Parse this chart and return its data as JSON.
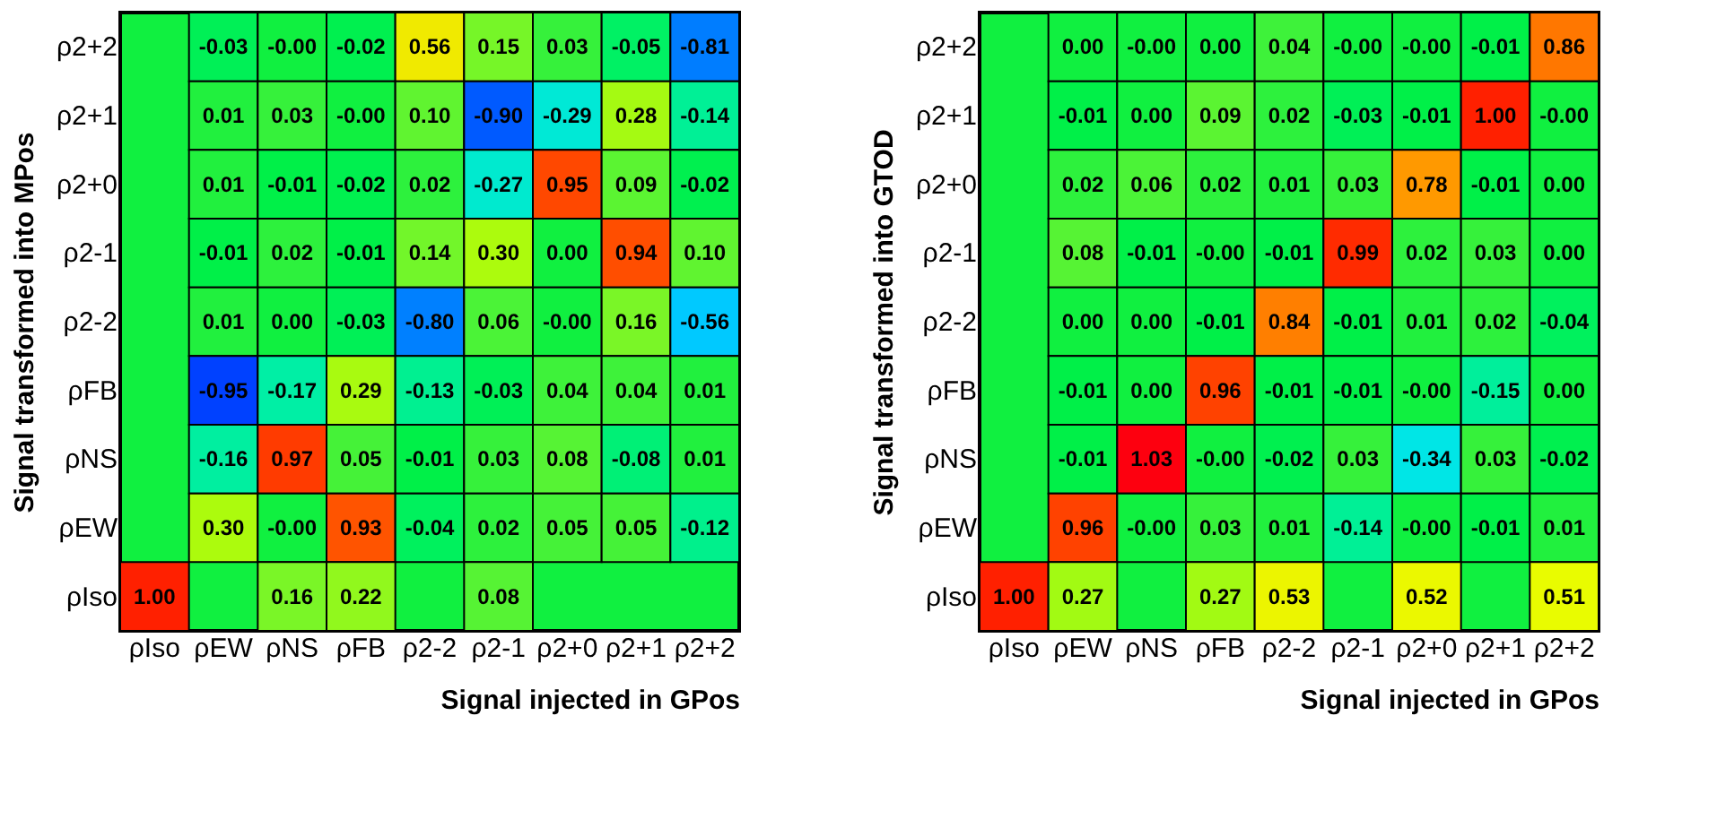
{
  "chart_data": [
    {
      "type": "heatmap",
      "xlabel": "Signal injected in GPos",
      "ylabel": "Signal transformed into MPos",
      "categories": [
        "ρIso",
        "ρEW",
        "ρNS",
        "ρFB",
        "ρ2-2",
        "ρ2-1",
        "ρ2+0",
        "ρ2+1",
        "ρ2+2"
      ],
      "y_categories": [
        "ρ2+2",
        "ρ2+1",
        "ρ2+0",
        "ρ2-1",
        "ρ2-2",
        "ρFB",
        "ρNS",
        "ρEW",
        "ρIso"
      ],
      "cells": [
        [
          null,
          -0.03,
          0,
          -0.02,
          0.56,
          0.15,
          0.03,
          -0.05,
          -0.81
        ],
        [
          null,
          0.01,
          0.03,
          0,
          0.1,
          -0.9,
          -0.29,
          0.28,
          -0.14
        ],
        [
          null,
          0.01,
          -0.01,
          -0.02,
          0.02,
          -0.27,
          0.95,
          0.09,
          -0.02
        ],
        [
          null,
          -0.01,
          0.02,
          -0.01,
          0.14,
          0.3,
          0,
          0.94,
          0.1
        ],
        [
          null,
          0.01,
          0,
          -0.03,
          -0.8,
          0.06,
          0,
          0.16,
          -0.56
        ],
        [
          null,
          -0.95,
          -0.17,
          0.29,
          -0.13,
          -0.03,
          0.04,
          0.04,
          0.01
        ],
        [
          null,
          -0.16,
          0.97,
          0.05,
          -0.01,
          0.03,
          0.08,
          -0.08,
          0.01
        ],
        [
          null,
          0.3,
          0,
          0.93,
          -0.04,
          0.02,
          0.05,
          0.05,
          -0.12
        ],
        [
          1,
          null,
          0.16,
          0.22,
          null,
          0.08,
          null,
          null,
          null
        ]
      ],
      "data_labels": true,
      "cell_labels": [
        [
          null,
          "-0.03",
          "-0.00",
          "-0.02",
          "0.56",
          "0.15",
          "0.03",
          "-0.05",
          "-0.81"
        ],
        [
          null,
          "0.01",
          "0.03",
          "-0.00",
          "0.10",
          "-0.90",
          "-0.29",
          "0.28",
          "-0.14"
        ],
        [
          null,
          "0.01",
          "-0.01",
          "-0.02",
          "0.02",
          "-0.27",
          "0.95",
          "0.09",
          "-0.02"
        ],
        [
          null,
          "-0.01",
          "0.02",
          "-0.01",
          "0.14",
          "0.30",
          "0.00",
          "0.94",
          "0.10"
        ],
        [
          null,
          "0.01",
          "0.00",
          "-0.03",
          "-0.80",
          "0.06",
          "-0.00",
          "0.16",
          "-0.56"
        ],
        [
          null,
          "-0.95",
          "-0.17",
          "0.29",
          "-0.13",
          "-0.03",
          "0.04",
          "0.04",
          "0.01"
        ],
        [
          null,
          "-0.16",
          "0.97",
          "0.05",
          "-0.01",
          "0.03",
          "0.08",
          "-0.08",
          "0.01"
        ],
        [
          null,
          "0.30",
          "-0.00",
          "0.93",
          "-0.04",
          "0.02",
          "0.05",
          "0.05",
          "-0.12"
        ],
        [
          "1.00",
          null,
          "0.16",
          "0.22",
          null,
          "0.08",
          null,
          null,
          null
        ]
      ]
    },
    {
      "type": "heatmap",
      "xlabel": "Signal injected in GPos",
      "ylabel": "Signal transformed into GTOD",
      "categories": [
        "ρIso",
        "ρEW",
        "ρNS",
        "ρFB",
        "ρ2-2",
        "ρ2-1",
        "ρ2+0",
        "ρ2+1",
        "ρ2+2"
      ],
      "y_categories": [
        "ρ2+2",
        "ρ2+1",
        "ρ2+0",
        "ρ2-1",
        "ρ2-2",
        "ρFB",
        "ρNS",
        "ρEW",
        "ρIso"
      ],
      "cells": [
        [
          null,
          0,
          0,
          0,
          0.04,
          0,
          0,
          -0.01,
          0.86
        ],
        [
          null,
          -0.01,
          0,
          0.09,
          0.02,
          -0.03,
          -0.01,
          1,
          0
        ],
        [
          null,
          0.02,
          0.06,
          0.02,
          0.01,
          0.03,
          0.78,
          -0.01,
          0
        ],
        [
          null,
          0.08,
          -0.01,
          0,
          -0.01,
          0.99,
          0.02,
          0.03,
          0
        ],
        [
          null,
          0,
          0,
          -0.01,
          0.84,
          -0.01,
          0.01,
          0.02,
          -0.04
        ],
        [
          null,
          -0.01,
          0,
          0.96,
          -0.01,
          -0.01,
          0,
          -0.15,
          0
        ],
        [
          null,
          -0.01,
          1.03,
          0,
          -0.02,
          0.03,
          -0.34,
          0.03,
          -0.02
        ],
        [
          null,
          0.96,
          0,
          0.03,
          0.01,
          -0.14,
          0,
          -0.01,
          0.01
        ],
        [
          1,
          0.27,
          null,
          0.27,
          0.53,
          null,
          0.52,
          null,
          0.51
        ]
      ],
      "data_labels": true,
      "cell_labels": [
        [
          null,
          "0.00",
          "-0.00",
          "0.00",
          "0.04",
          "-0.00",
          "-0.00",
          "-0.01",
          "0.86"
        ],
        [
          null,
          "-0.01",
          "0.00",
          "0.09",
          "0.02",
          "-0.03",
          "-0.01",
          "1.00",
          "-0.00"
        ],
        [
          null,
          "0.02",
          "0.06",
          "0.02",
          "0.01",
          "0.03",
          "0.78",
          "-0.01",
          "0.00"
        ],
        [
          null,
          "0.08",
          "-0.01",
          "-0.00",
          "-0.01",
          "0.99",
          "0.02",
          "0.03",
          "0.00"
        ],
        [
          null,
          "0.00",
          "0.00",
          "-0.01",
          "0.84",
          "-0.01",
          "0.01",
          "0.02",
          "-0.04"
        ],
        [
          null,
          "-0.01",
          "0.00",
          "0.96",
          "-0.01",
          "-0.01",
          "-0.00",
          "-0.15",
          "0.00"
        ],
        [
          null,
          "-0.01",
          "1.03",
          "-0.00",
          "-0.02",
          "0.03",
          "-0.34",
          "0.03",
          "-0.02"
        ],
        [
          null,
          "0.96",
          "-0.00",
          "0.03",
          "0.01",
          "-0.14",
          "-0.00",
          "-0.01",
          "0.01"
        ],
        [
          "1.00",
          "0.27",
          null,
          "0.27",
          "0.53",
          null,
          "0.52",
          null,
          "0.51"
        ]
      ]
    }
  ]
}
